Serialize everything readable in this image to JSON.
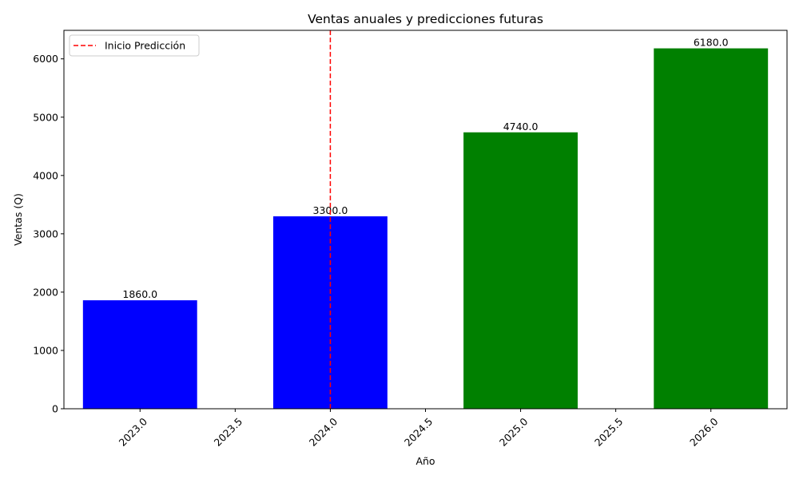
{
  "chart_data": {
    "type": "bar",
    "title": "Ventas anuales y predicciones futuras",
    "xlabel": "Año",
    "ylabel": "Ventas (Q)",
    "x": [
      2023,
      2024,
      2025,
      2026
    ],
    "values": [
      1860.0,
      3300.0,
      4740.0,
      6180.0
    ],
    "data_labels": [
      "1860.0",
      "3300.0",
      "4740.0",
      "6180.0"
    ],
    "bar_width": 0.6,
    "bar_colors": [
      "#0000ff",
      "#0000ff",
      "#008000",
      "#008000"
    ],
    "xlim": [
      2022.6,
      2026.4
    ],
    "ylim": [
      0,
      6489
    ],
    "xticks": [
      2023.0,
      2023.5,
      2024.0,
      2024.5,
      2025.0,
      2025.5,
      2026.0
    ],
    "xtick_labels": [
      "2023.0",
      "2023.5",
      "2024.0",
      "2024.5",
      "2025.0",
      "2025.5",
      "2026.0"
    ],
    "yticks": [
      0,
      1000,
      2000,
      3000,
      4000,
      5000,
      6000
    ],
    "ytick_labels": [
      "0",
      "1000",
      "2000",
      "3000",
      "4000",
      "5000",
      "6000"
    ],
    "reference_line": {
      "x": 2024.0,
      "color": "#ff0000",
      "style": "dashed",
      "label": "Inicio Predicción"
    },
    "legend": {
      "position": "top-left",
      "entries": [
        "Inicio Predicción"
      ]
    },
    "grid": false
  }
}
